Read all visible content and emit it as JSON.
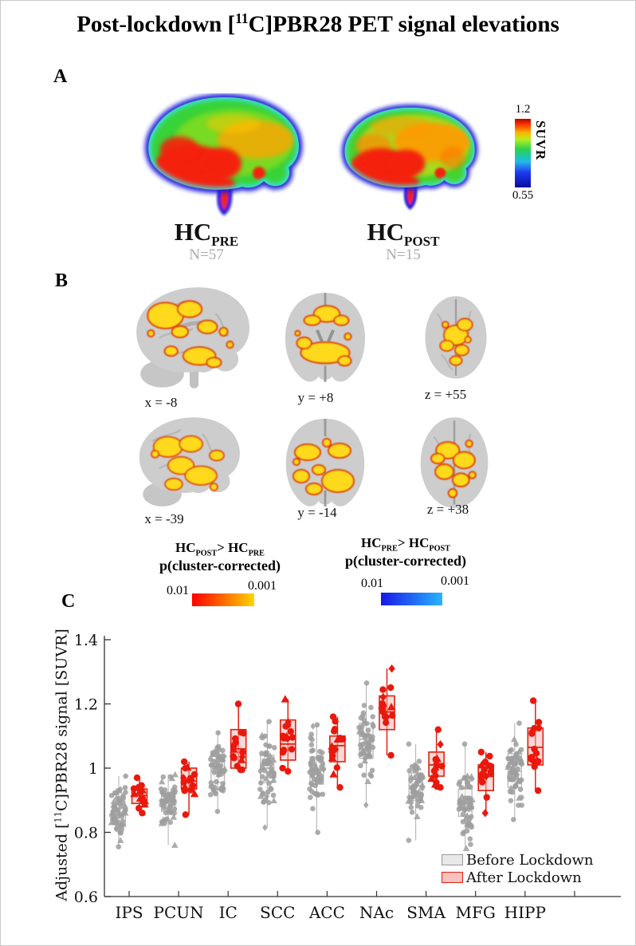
{
  "figure_title": {
    "pre": "Post-lockdown [",
    "sup": "11",
    "post": "C]PBR28 PET signal elevations"
  },
  "panelA": {
    "label": "A",
    "colorbar": {
      "max": "1.2",
      "min": "0.55",
      "label": "SUVR",
      "gradient": [
        "#b80000",
        "#ff3c00 9%",
        "#ffb300 20%",
        "#b4f01e 30%",
        "#2ed24b 44%",
        "#19c8b4 56%",
        "#28b4f0 63%",
        "#1e3cf0 78%",
        "#0a0aa0 100%"
      ]
    },
    "groups": [
      {
        "base": "HC",
        "sub": "PRE",
        "n": "N=57"
      },
      {
        "base": "HC",
        "sub": "POST",
        "n": "N=15"
      }
    ],
    "n_color": "#ababab"
  },
  "panelB": {
    "label": "B",
    "slices": [
      "x = -8",
      "y = +8",
      "z = +55",
      "x = -39",
      "y = -14",
      "z = +38"
    ],
    "legends": [
      {
        "base1": "HC",
        "sub1": "POST",
        "mid": "> HC",
        "sub2": "PRE",
        "line2": "p(cluster-corrected)",
        "lo": "0.01",
        "hi": "0.001",
        "grad": [
          "#ff0000",
          "#ffd400"
        ]
      },
      {
        "base1": "HC",
        "sub1": "PRE",
        "mid": "> HC",
        "sub2": "POST",
        "line2": "p(cluster-corrected)",
        "lo": "0.01",
        "hi": "0.001",
        "grad": [
          "#1818e6",
          "#28b4ff"
        ]
      }
    ]
  },
  "panelC": {
    "label": "C",
    "ylabel": {
      "pre": "Adjusted [",
      "sup": "11",
      "post": "C]PBR28 signal [SUVR]"
    },
    "legend": [
      {
        "label": "Before Lockdown",
        "fill": "#e8e8e8",
        "edge": "#999999"
      },
      {
        "label": "After Lockdown",
        "fill": "#f8c3bf",
        "edge": "#e02011"
      }
    ]
  },
  "chart_data": {
    "type": "boxplot-scatter",
    "title": "",
    "xlabel": "",
    "ylabel": "Adjusted [11C]PBR28 signal [SUVR]",
    "ylim": [
      0.6,
      1.4
    ],
    "yticks": [
      "0.6",
      "0.8",
      "1",
      "1.2",
      "1.4"
    ],
    "grid": false,
    "legend_position": "lower right",
    "categories": [
      "IPS",
      "PCUN",
      "IC",
      "SCC",
      "ACC",
      "NAc",
      "SMA",
      "MFG",
      "HIPP"
    ],
    "series": [
      {
        "name": "Before Lockdown",
        "n": 57,
        "marker_color": "#9d9d9d",
        "box_fill": "rgba(240,240,240,0.55)",
        "box_edge": "#b5b5b5",
        "median_color": "#a8a8a8",
        "stats": [
          {
            "median": 0.855,
            "q1": 0.825,
            "q3": 0.885,
            "lo": 0.755,
            "hi": 0.975
          },
          {
            "median": 0.895,
            "q1": 0.865,
            "q3": 0.925,
            "lo": 0.76,
            "hi": 0.98
          },
          {
            "median": 0.99,
            "q1": 0.955,
            "q3": 1.025,
            "lo": 0.865,
            "hi": 1.11
          },
          {
            "median": 1.0,
            "q1": 0.955,
            "q3": 1.04,
            "lo": 0.815,
            "hi": 1.145
          },
          {
            "median": 0.995,
            "q1": 0.95,
            "q3": 1.035,
            "lo": 0.8,
            "hi": 1.135
          },
          {
            "median": 1.09,
            "q1": 1.03,
            "q3": 1.14,
            "lo": 0.885,
            "hi": 1.265
          },
          {
            "median": 0.945,
            "q1": 0.9,
            "q3": 0.985,
            "lo": 0.775,
            "hi": 1.075
          },
          {
            "median": 0.89,
            "q1": 0.85,
            "q3": 0.935,
            "lo": 0.75,
            "hi": 1.075
          },
          {
            "median": 0.99,
            "q1": 0.94,
            "q3": 1.045,
            "lo": 0.84,
            "hi": 1.14
          }
        ]
      },
      {
        "name": "After Lockdown",
        "n": 15,
        "marker_color": "#e8190c",
        "box_fill": "rgba(249,180,174,0.5)",
        "box_edge": "#e02011",
        "median_color": "#e02011",
        "stats": [
          {
            "median": 0.915,
            "q1": 0.89,
            "q3": 0.935,
            "lo": 0.86,
            "hi": 0.97
          },
          {
            "median": 0.96,
            "q1": 0.935,
            "q3": 1.0,
            "lo": 0.855,
            "hi": 1.02
          },
          {
            "median": 1.06,
            "q1": 1.0,
            "q3": 1.12,
            "lo": 0.995,
            "hi": 1.2
          },
          {
            "median": 1.075,
            "q1": 1.025,
            "q3": 1.15,
            "lo": 0.99,
            "hi": 1.215
          },
          {
            "median": 1.07,
            "q1": 1.02,
            "q3": 1.1,
            "lo": 0.94,
            "hi": 1.16
          },
          {
            "median": 1.175,
            "q1": 1.12,
            "q3": 1.225,
            "lo": 1.04,
            "hi": 1.31
          },
          {
            "median": 1.01,
            "q1": 0.975,
            "q3": 1.05,
            "lo": 0.94,
            "hi": 1.12
          },
          {
            "median": 0.98,
            "q1": 0.93,
            "q3": 1.01,
            "lo": 0.86,
            "hi": 1.05
          },
          {
            "median": 1.065,
            "q1": 1.01,
            "q3": 1.125,
            "lo": 0.93,
            "hi": 1.21
          }
        ]
      }
    ]
  }
}
